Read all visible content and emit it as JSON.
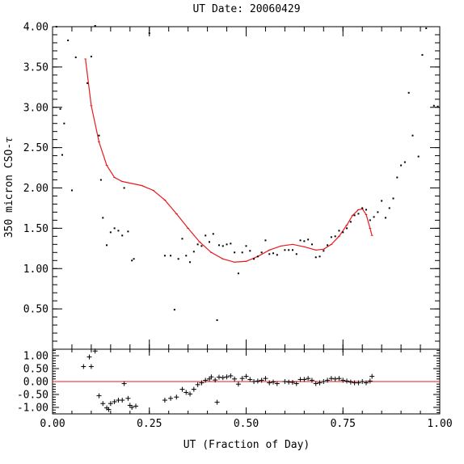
{
  "chart_data": {
    "type": "scatter",
    "title": "UT Date: 20060429",
    "xlabel": "UT (Fraction of Day)",
    "ylabel": "350 micron CSO-",
    "ylabel_symbol": "τ",
    "xlim": [
      0.0,
      1.0
    ],
    "x_ticks": [
      "0.00",
      "0.25",
      "0.50",
      "0.75",
      "1.00"
    ],
    "top": {
      "ylim": [
        0.0,
        4.0
      ],
      "y_ticks": [
        "0.50",
        "1.00",
        "1.50",
        "2.00",
        "2.50",
        "3.00",
        "3.50",
        "4.00"
      ],
      "series": [
        {
          "kind": "measurements",
          "color": "#000000",
          "points": [
            [
              0.01,
              4.0
            ],
            [
              0.02,
              2.98
            ],
            [
              0.025,
              2.41
            ],
            [
              0.03,
              2.8
            ],
            [
              0.04,
              3.83
            ],
            [
              0.05,
              1.97
            ],
            [
              0.06,
              3.62
            ],
            [
              0.09,
              3.3
            ],
            [
              0.1,
              3.63
            ],
            [
              0.11,
              4.01
            ],
            [
              0.12,
              2.65
            ],
            [
              0.125,
              2.1
            ],
            [
              0.13,
              1.63
            ],
            [
              0.14,
              1.29
            ],
            [
              0.15,
              1.45
            ],
            [
              0.16,
              1.5
            ],
            [
              0.17,
              1.47
            ],
            [
              0.18,
              1.41
            ],
            [
              0.185,
              2.0
            ],
            [
              0.195,
              1.46
            ],
            [
              0.205,
              1.1
            ],
            [
              0.21,
              1.12
            ],
            [
              0.25,
              3.92
            ],
            [
              0.29,
              1.16
            ],
            [
              0.305,
              1.16
            ],
            [
              0.315,
              0.49
            ],
            [
              0.325,
              1.12
            ],
            [
              0.335,
              1.37
            ],
            [
              0.345,
              1.16
            ],
            [
              0.355,
              1.08
            ],
            [
              0.365,
              1.21
            ],
            [
              0.375,
              1.3
            ],
            [
              0.385,
              1.28
            ],
            [
              0.395,
              1.41
            ],
            [
              0.405,
              1.33
            ],
            [
              0.415,
              1.43
            ],
            [
              0.425,
              0.36
            ],
            [
              0.43,
              1.29
            ],
            [
              0.44,
              1.28
            ],
            [
              0.45,
              1.3
            ],
            [
              0.46,
              1.31
            ],
            [
              0.47,
              1.2
            ],
            [
              0.48,
              0.94
            ],
            [
              0.49,
              1.2
            ],
            [
              0.5,
              1.28
            ],
            [
              0.51,
              1.22
            ],
            [
              0.52,
              1.12
            ],
            [
              0.53,
              1.15
            ],
            [
              0.54,
              1.2
            ],
            [
              0.55,
              1.35
            ],
            [
              0.56,
              1.18
            ],
            [
              0.57,
              1.19
            ],
            [
              0.58,
              1.17
            ],
            [
              0.6,
              1.23
            ],
            [
              0.61,
              1.23
            ],
            [
              0.62,
              1.23
            ],
            [
              0.63,
              1.18
            ],
            [
              0.64,
              1.35
            ],
            [
              0.65,
              1.34
            ],
            [
              0.66,
              1.36
            ],
            [
              0.67,
              1.3
            ],
            [
              0.68,
              1.14
            ],
            [
              0.69,
              1.15
            ],
            [
              0.7,
              1.22
            ],
            [
              0.71,
              1.29
            ],
            [
              0.72,
              1.39
            ],
            [
              0.73,
              1.4
            ],
            [
              0.74,
              1.47
            ],
            [
              0.75,
              1.45
            ],
            [
              0.76,
              1.5
            ],
            [
              0.77,
              1.58
            ],
            [
              0.78,
              1.66
            ],
            [
              0.79,
              1.68
            ],
            [
              0.8,
              1.75
            ],
            [
              0.81,
              1.73
            ],
            [
              0.82,
              1.6
            ],
            [
              0.83,
              1.64
            ],
            [
              0.84,
              1.7
            ],
            [
              0.85,
              1.84
            ],
            [
              0.86,
              1.63
            ],
            [
              0.87,
              1.75
            ],
            [
              0.88,
              1.87
            ],
            [
              0.89,
              2.13
            ],
            [
              0.9,
              2.28
            ],
            [
              0.91,
              2.32
            ],
            [
              0.92,
              3.18
            ],
            [
              0.93,
              2.65
            ],
            [
              0.945,
              2.39
            ],
            [
              0.955,
              3.65
            ],
            [
              0.965,
              3.98
            ],
            [
              0.985,
              3.02
            ],
            [
              0.995,
              3.01
            ]
          ]
        },
        {
          "kind": "fit",
          "color": "#e8191e",
          "points": [
            [
              0.085,
              3.6
            ],
            [
              0.1,
              3.02
            ],
            [
              0.12,
              2.57
            ],
            [
              0.14,
              2.28
            ],
            [
              0.16,
              2.13
            ],
            [
              0.18,
              2.08
            ],
            [
              0.2,
              2.06
            ],
            [
              0.23,
              2.03
            ],
            [
              0.26,
              1.97
            ],
            [
              0.29,
              1.85
            ],
            [
              0.32,
              1.68
            ],
            [
              0.35,
              1.5
            ],
            [
              0.38,
              1.33
            ],
            [
              0.41,
              1.2
            ],
            [
              0.44,
              1.12
            ],
            [
              0.47,
              1.08
            ],
            [
              0.5,
              1.09
            ],
            [
              0.53,
              1.15
            ],
            [
              0.56,
              1.23
            ],
            [
              0.59,
              1.28
            ],
            [
              0.62,
              1.3
            ],
            [
              0.65,
              1.27
            ],
            [
              0.68,
              1.23
            ],
            [
              0.7,
              1.24
            ],
            [
              0.72,
              1.3
            ],
            [
              0.74,
              1.4
            ],
            [
              0.76,
              1.54
            ],
            [
              0.775,
              1.66
            ],
            [
              0.79,
              1.73
            ],
            [
              0.8,
              1.74
            ],
            [
              0.81,
              1.67
            ],
            [
              0.82,
              1.5
            ],
            [
              0.825,
              1.41
            ]
          ]
        }
      ]
    },
    "bottom": {
      "ylim": [
        -1.25,
        1.25
      ],
      "y_ticks": [
        "1.00",
        "0.50",
        "0.00",
        "-0.50",
        "-1.00"
      ],
      "zero_line_color": "#e8191e",
      "residuals": [
        [
          0.08,
          0.58
        ],
        [
          0.095,
          0.95
        ],
        [
          0.1,
          0.58
        ],
        [
          0.11,
          1.18
        ],
        [
          0.12,
          -0.55
        ],
        [
          0.13,
          -0.85
        ],
        [
          0.14,
          -1.02
        ],
        [
          0.145,
          -1.08
        ],
        [
          0.15,
          -0.85
        ],
        [
          0.16,
          -0.78
        ],
        [
          0.17,
          -0.72
        ],
        [
          0.18,
          -0.72
        ],
        [
          0.185,
          -0.08
        ],
        [
          0.195,
          -0.65
        ],
        [
          0.2,
          -0.92
        ],
        [
          0.205,
          -1.0
        ],
        [
          0.215,
          -0.95
        ],
        [
          0.29,
          -0.72
        ],
        [
          0.305,
          -0.65
        ],
        [
          0.32,
          -0.6
        ],
        [
          0.335,
          -0.3
        ],
        [
          0.345,
          -0.42
        ],
        [
          0.355,
          -0.48
        ],
        [
          0.365,
          -0.3
        ],
        [
          0.375,
          -0.12
        ],
        [
          0.385,
          -0.05
        ],
        [
          0.395,
          0.05
        ],
        [
          0.405,
          0.1
        ],
        [
          0.41,
          0.18
        ],
        [
          0.42,
          0.06
        ],
        [
          0.425,
          -0.8
        ],
        [
          0.43,
          0.17
        ],
        [
          0.44,
          0.15
        ],
        [
          0.45,
          0.18
        ],
        [
          0.46,
          0.22
        ],
        [
          0.47,
          0.1
        ],
        [
          0.48,
          -0.1
        ],
        [
          0.49,
          0.12
        ],
        [
          0.5,
          0.2
        ],
        [
          0.51,
          0.08
        ],
        [
          0.52,
          0.0
        ],
        [
          0.53,
          0.02
        ],
        [
          0.54,
          0.05
        ],
        [
          0.55,
          0.12
        ],
        [
          0.56,
          -0.05
        ],
        [
          0.57,
          -0.02
        ],
        [
          0.58,
          -0.08
        ],
        [
          0.6,
          0.0
        ],
        [
          0.61,
          -0.02
        ],
        [
          0.62,
          -0.03
        ],
        [
          0.63,
          -0.08
        ],
        [
          0.64,
          0.08
        ],
        [
          0.65,
          0.08
        ],
        [
          0.66,
          0.12
        ],
        [
          0.67,
          0.05
        ],
        [
          0.68,
          -0.08
        ],
        [
          0.69,
          -0.05
        ],
        [
          0.7,
          0.0
        ],
        [
          0.71,
          0.05
        ],
        [
          0.72,
          0.12
        ],
        [
          0.73,
          0.1
        ],
        [
          0.74,
          0.12
        ],
        [
          0.75,
          0.05
        ],
        [
          0.76,
          0.02
        ],
        [
          0.77,
          -0.02
        ],
        [
          0.78,
          -0.05
        ],
        [
          0.79,
          -0.05
        ],
        [
          0.8,
          0.0
        ],
        [
          0.81,
          -0.05
        ],
        [
          0.82,
          0.02
        ],
        [
          0.825,
          0.2
        ]
      ]
    }
  }
}
